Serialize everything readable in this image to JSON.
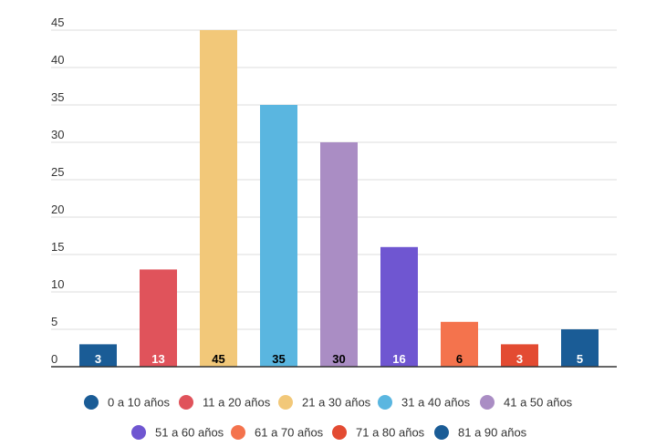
{
  "chart_data": {
    "type": "bar",
    "title": "",
    "xlabel": "",
    "ylabel": "",
    "ylim": [
      0,
      45
    ],
    "yticks": [
      0,
      5,
      10,
      15,
      20,
      25,
      30,
      35,
      40,
      45
    ],
    "grid": true,
    "legend_position": "bottom",
    "categories": [
      "0 a 10 años",
      "11 a 20 años",
      "21 a 30 años",
      "31 a 40 años",
      "41 a 50 años",
      "51 a 60 años",
      "61 a 70 años",
      "71 a 80 años",
      "81 a 90 años"
    ],
    "values": [
      3,
      13,
      45,
      35,
      30,
      16,
      6,
      3,
      5
    ],
    "colors": [
      "#1a5c96",
      "#e0535b",
      "#f2c879",
      "#5ab6e0",
      "#aa8dc4",
      "#6f56d1",
      "#f4734d",
      "#e34b32",
      "#1a5c96"
    ],
    "label_colors": [
      "#ffffff",
      "#ffffff",
      "#000000",
      "#000000",
      "#000000",
      "#ffffff",
      "#000000",
      "#ffffff",
      "#ffffff"
    ]
  }
}
